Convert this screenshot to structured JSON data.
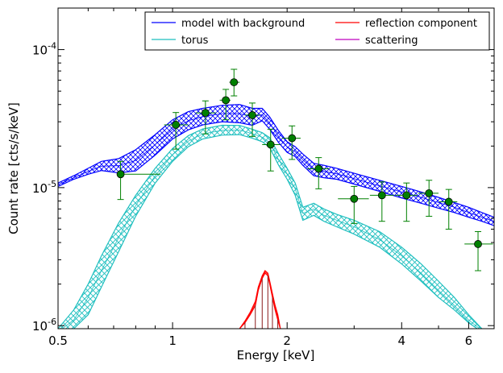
{
  "chart_data": {
    "type": "line",
    "xscale": "log",
    "yscale": "log",
    "xlabel": "Energy [keV]",
    "ylabel": "Count rate [cts/s/keV]",
    "xlim": [
      0.5,
      7.0
    ],
    "ylim": [
      9.5e-07,
      0.0002
    ],
    "x_ticks": [
      0.5,
      1,
      2,
      4,
      6
    ],
    "x_tick_labels": [
      "0.5",
      "1",
      "2",
      "4",
      "6"
    ],
    "y_ticks": [
      1e-06,
      1e-05,
      0.0001
    ],
    "y_tick_labels": [
      {
        "base": "10",
        "exp": "-6"
      },
      {
        "base": "10",
        "exp": "-5"
      },
      {
        "base": "10",
        "exp": "-4"
      }
    ],
    "legend": {
      "placement": "top-right",
      "columns": 2,
      "entries": [
        {
          "label": "model with background",
          "color": "#0000ff"
        },
        {
          "label": "reflection component",
          "color": "#ff0000"
        },
        {
          "label": "torus",
          "color": "#1fbfbf"
        },
        {
          "label": "scattering",
          "color": "#bf00bf"
        }
      ]
    },
    "series": [
      {
        "name": "model with background",
        "color": "#0000ff",
        "style": "hatched band",
        "x": [
          0.5,
          0.55,
          0.6,
          0.65,
          0.72,
          0.8,
          0.9,
          1.0,
          1.1,
          1.2,
          1.35,
          1.5,
          1.62,
          1.72,
          1.8,
          1.9,
          2.0,
          2.1,
          2.2,
          2.35,
          2.5,
          2.7,
          3.0,
          3.5,
          4.0,
          4.5,
          5.0,
          5.5,
          6.0,
          6.5,
          7.0
        ],
        "y_low": [
          1.02e-05,
          1.15e-05,
          1.25e-05,
          1.33e-05,
          1.28e-05,
          1.32e-05,
          1.72e-05,
          2.25e-05,
          2.62e-05,
          2.85e-05,
          3e-05,
          2.95e-05,
          2.83e-05,
          3.05e-05,
          2.65e-05,
          2.12e-05,
          1.8e-05,
          1.68e-05,
          1.45e-05,
          1.22e-05,
          1.18e-05,
          1.15e-05,
          1.06e-05,
          9.4e-06,
          8.4e-06,
          7.7e-06,
          7.1e-06,
          6.6e-06,
          6.1e-06,
          5.7e-06,
          5.3e-06
        ],
        "y_high": [
          1.08e-05,
          1.22e-05,
          1.38e-05,
          1.55e-05,
          1.62e-05,
          1.88e-05,
          2.42e-05,
          3.1e-05,
          3.55e-05,
          3.75e-05,
          3.95e-05,
          4e-05,
          3.75e-05,
          3.75e-05,
          3.25e-05,
          2.58e-05,
          2.15e-05,
          1.98e-05,
          1.75e-05,
          1.5e-05,
          1.45e-05,
          1.38e-05,
          1.27e-05,
          1.13e-05,
          1.02e-05,
          9.3e-06,
          8.5e-06,
          7.8e-06,
          7.2e-06,
          6.6e-06,
          6.1e-06
        ],
        "y": [
          1.05e-05,
          1.18e-05,
          1.31e-05,
          1.43e-05,
          1.44e-05,
          1.57e-05,
          2.05e-05,
          2.64e-05,
          3.05e-05,
          3.27e-05,
          3.44e-05,
          3.44e-05,
          3.26e-05,
          3.38e-05,
          2.93e-05,
          2.34e-05,
          1.97e-05,
          1.82e-05,
          1.59e-05,
          1.35e-05,
          1.31e-05,
          1.26e-05,
          1.16e-05,
          1.03e-05,
          9.3e-06,
          8.5e-06,
          7.8e-06,
          7.2e-06,
          6.6e-06,
          6.1e-06,
          5.7e-06
        ]
      },
      {
        "name": "torus",
        "color": "#1fbfbf",
        "style": "hatched band",
        "x": [
          0.5,
          0.55,
          0.6,
          0.65,
          0.72,
          0.8,
          0.9,
          1.0,
          1.1,
          1.2,
          1.35,
          1.5,
          1.62,
          1.72,
          1.8,
          1.9,
          2.0,
          2.1,
          2.2,
          2.35,
          2.5,
          2.7,
          3.0,
          3.5,
          4.0,
          4.5,
          5.0,
          5.5,
          6.0,
          6.5,
          7.0
        ],
        "y_low": [
          8.5e-07,
          9.5e-07,
          1.2e-06,
          1.9e-06,
          3.4e-06,
          6.2e-06,
          1.08e-05,
          1.55e-05,
          1.98e-05,
          2.25e-05,
          2.4e-05,
          2.42e-05,
          2.28e-05,
          2.15e-05,
          1.95e-05,
          1.45e-05,
          1.15e-05,
          8.8e-06,
          5.8e-06,
          6.3e-06,
          5.7e-06,
          5.2e-06,
          4.6e-06,
          3.7e-06,
          2.8e-06,
          2.1e-06,
          1.6e-06,
          1.3e-06,
          1.05e-06,
          9e-07,
          8e-07
        ],
        "y_high": [
          9.5e-07,
          1.3e-06,
          2e-06,
          3.2e-06,
          5.5e-06,
          8.8e-06,
          1.38e-05,
          1.92e-05,
          2.38e-05,
          2.66e-05,
          2.83e-05,
          2.82e-05,
          2.65e-05,
          2.5e-05,
          2.3e-05,
          1.75e-05,
          1.38e-05,
          1.08e-05,
          7.2e-06,
          7.7e-06,
          7e-06,
          6.4e-06,
          5.8e-06,
          4.8e-06,
          3.7e-06,
          2.8e-06,
          2.1e-06,
          1.6e-06,
          1.2e-06,
          9.5e-07,
          8.5e-07
        ],
        "y": [
          9e-07,
          1.1e-06,
          1.6e-06,
          2.5e-06,
          4.3e-06,
          7.4e-06,
          1.22e-05,
          1.73e-05,
          2.17e-05,
          2.45e-05,
          2.6e-05,
          2.61e-05,
          2.46e-05,
          2.32e-05,
          2.12e-05,
          1.59e-05,
          1.26e-05,
          9.8e-06,
          6.5e-06,
          7e-06,
          6.3e-06,
          5.8e-06,
          5.2e-06,
          4.2e-06,
          3.2e-06,
          2.4e-06,
          1.8e-06,
          1.4e-06,
          1.1e-06,
          9.2e-07,
          8.2e-07
        ]
      },
      {
        "name": "reflection component",
        "color": "#ff0000",
        "style": "band with vertical fill",
        "x": [
          1.5,
          1.55,
          1.6,
          1.65,
          1.68,
          1.72,
          1.75,
          1.78,
          1.8,
          1.83,
          1.86,
          1.89,
          1.92
        ],
        "y_low": [
          9.5e-07,
          1.05e-06,
          1.2e-06,
          1.4e-06,
          1.8e-06,
          2.2e-06,
          2.4e-06,
          2.3e-06,
          2e-06,
          1.6e-06,
          1.3e-06,
          1.1e-06,
          9.5e-07
        ],
        "y_high": [
          9.5e-07,
          1.08e-06,
          1.25e-06,
          1.5e-06,
          1.9e-06,
          2.3e-06,
          2.5e-06,
          2.4e-06,
          2.1e-06,
          1.7e-06,
          1.4e-06,
          1.2e-06,
          9.5e-07
        ],
        "y": [
          9.5e-07,
          1.06e-06,
          1.22e-06,
          1.45e-06,
          1.85e-06,
          2.25e-06,
          2.45e-06,
          2.35e-06,
          2.05e-06,
          1.65e-06,
          1.35e-06,
          1.15e-06,
          9.5e-07
        ]
      },
      {
        "name": "scattering",
        "color": "#bf00bf",
        "style": "line",
        "x": [],
        "y": []
      }
    ],
    "data_points": {
      "color": "#008000",
      "x": [
        0.73,
        1.02,
        1.22,
        1.38,
        1.45,
        1.62,
        1.81,
        2.06,
        2.42,
        3.0,
        3.55,
        4.12,
        4.72,
        5.32,
        6.35
      ],
      "y": [
        1.25e-05,
        2.85e-05,
        3.48e-05,
        4.3e-05,
        5.8e-05,
        3.35e-05,
        2.05e-05,
        2.28e-05,
        1.37e-05,
        8.3e-06,
        8.8e-06,
        8.8e-06,
        9.1e-06,
        7.9e-06,
        3.9e-06
      ],
      "xerr_low": [
        0.73,
        0.95,
        1.15,
        1.33,
        1.41,
        1.55,
        1.72,
        1.94,
        2.26,
        2.72,
        3.3,
        3.85,
        4.42,
        5.02,
        5.85
      ],
      "xerr_high": [
        0.93,
        1.1,
        1.3,
        1.42,
        1.5,
        1.7,
        1.92,
        2.17,
        2.58,
        3.28,
        3.82,
        4.4,
        5.0,
        5.6,
        6.95
      ],
      "yerr_low": [
        8.2e-06,
        1.9e-05,
        2.45e-05,
        3.1e-05,
        4.62e-05,
        2.35e-05,
        1.32e-05,
        1.6e-05,
        9.8e-06,
        5.5e-06,
        5.7e-06,
        5.7e-06,
        6.2e-06,
        5e-06,
        2.5e-06
      ],
      "yerr_high": [
        1.55e-05,
        3.5e-05,
        4.25e-05,
        5.15e-05,
        7.2e-05,
        4.1e-05,
        2.65e-05,
        2.8e-05,
        1.65e-05,
        1.02e-05,
        1.1e-05,
        1.08e-05,
        1.13e-05,
        9.7e-06,
        4.8e-06
      ]
    }
  }
}
